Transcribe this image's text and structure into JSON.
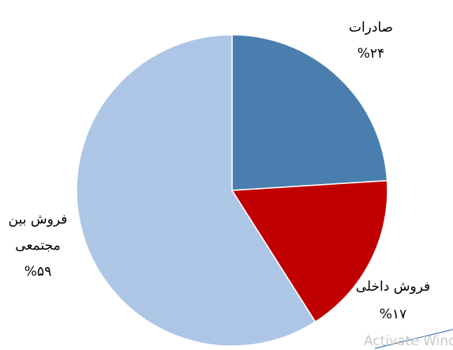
{
  "chart_data": {
    "type": "pie",
    "slices": [
      {
        "label": "صادرات",
        "value_label": "%۲۴",
        "value": 24,
        "color": "#4a7eaf"
      },
      {
        "label": "فروش داخلی",
        "value_label": "%۱۷",
        "value": 17,
        "color": "#c00000"
      },
      {
        "label": "فروش بین مجتمعی",
        "value_label": "%۵۹",
        "value": 59,
        "color": "#adc6e5"
      }
    ],
    "label_lines": [
      [
        "صادرات",
        "%۲۴"
      ],
      [
        "فروش داخلی",
        "%۱۷"
      ],
      [
        "فروش بین",
        "مجتمعی",
        "%۵۹"
      ]
    ],
    "start_angle_deg": 0,
    "direction": "clockwise",
    "legend": "none"
  },
  "watermark": {
    "text": "Activate Wind"
  }
}
